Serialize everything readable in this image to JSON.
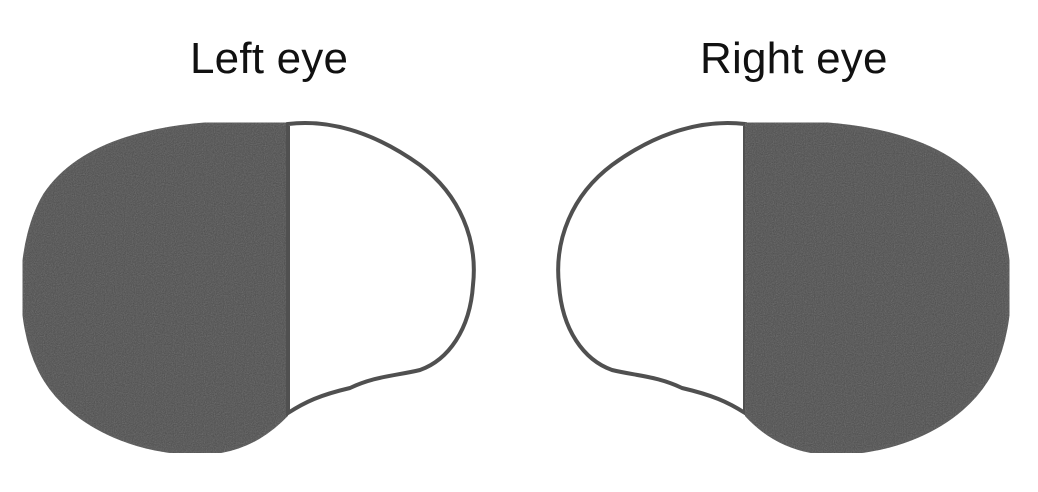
{
  "labels": {
    "left_eye": "Left eye",
    "right_eye": "Right eye"
  },
  "colors": {
    "blind_field": "#4d4d4d",
    "seeing_field": "#ffffff",
    "outline": "#505050"
  },
  "fields": {
    "left_eye": {
      "blind_half": "left",
      "seeing_half": "right"
    },
    "right_eye": {
      "blind_half": "right",
      "seeing_half": "left"
    }
  }
}
